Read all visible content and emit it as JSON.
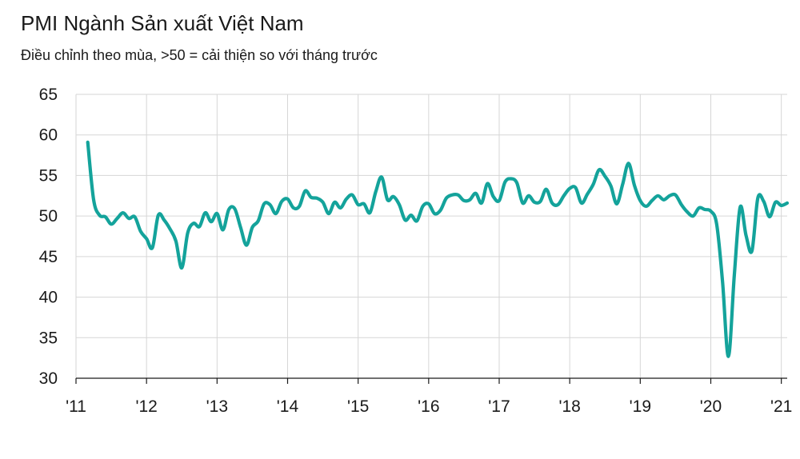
{
  "chart_data": {
    "type": "line",
    "title": "PMI Ngành Sản xuất Việt Nam",
    "subtitle": "Điều chỉnh theo mùa, >50 = cải thiện so với tháng trước",
    "xlabel": "",
    "ylabel": "",
    "ylim": [
      30,
      65
    ],
    "yticks": [
      "65",
      "60",
      "55",
      "50",
      "45",
      "40",
      "35",
      "30"
    ],
    "xlim": [
      "2011-01",
      "2021-02"
    ],
    "xticks": [
      {
        "label": "'11",
        "year": 2011
      },
      {
        "label": "'12",
        "year": 2012
      },
      {
        "label": "'13",
        "year": 2013
      },
      {
        "label": "'14",
        "year": 2014
      },
      {
        "label": "'15",
        "year": 2015
      },
      {
        "label": "'16",
        "year": 2016
      },
      {
        "label": "'17",
        "year": 2017
      },
      {
        "label": "'18",
        "year": 2018
      },
      {
        "label": "'19",
        "year": 2019
      },
      {
        "label": "'20",
        "year": 2020
      },
      {
        "label": "'21",
        "year": 2021
      }
    ],
    "grid": true,
    "line_color": "#14a39b",
    "series": [
      {
        "x": [
          "2011-03",
          "2011-04",
          "2011-05",
          "2011-06",
          "2011-07",
          "2011-08",
          "2011-09",
          "2011-10",
          "2011-11",
          "2011-12",
          "2012-01",
          "2012-02",
          "2012-03",
          "2012-04",
          "2012-05",
          "2012-06",
          "2012-07",
          "2012-08",
          "2012-09",
          "2012-10",
          "2012-11",
          "2012-12",
          "2013-01",
          "2013-02",
          "2013-03",
          "2013-04",
          "2013-05",
          "2013-06",
          "2013-07",
          "2013-08",
          "2013-09",
          "2013-10",
          "2013-11",
          "2013-12",
          "2014-01",
          "2014-02",
          "2014-03",
          "2014-04",
          "2014-05",
          "2014-06",
          "2014-07",
          "2014-08",
          "2014-09",
          "2014-10",
          "2014-11",
          "2014-12",
          "2015-01",
          "2015-02",
          "2015-03",
          "2015-04",
          "2015-05",
          "2015-06",
          "2015-07",
          "2015-08",
          "2015-09",
          "2015-10",
          "2015-11",
          "2015-12",
          "2016-01",
          "2016-02",
          "2016-03",
          "2016-04",
          "2016-05",
          "2016-06",
          "2016-07",
          "2016-08",
          "2016-09",
          "2016-10",
          "2016-11",
          "2016-12",
          "2017-01",
          "2017-02",
          "2017-03",
          "2017-04",
          "2017-05",
          "2017-06",
          "2017-07",
          "2017-08",
          "2017-09",
          "2017-10",
          "2017-11",
          "2017-12",
          "2018-01",
          "2018-02",
          "2018-03",
          "2018-04",
          "2018-05",
          "2018-06",
          "2018-07",
          "2018-08",
          "2018-09",
          "2018-10",
          "2018-11",
          "2018-12",
          "2019-01",
          "2019-02",
          "2019-03",
          "2019-04",
          "2019-05",
          "2019-06",
          "2019-07",
          "2019-08",
          "2019-09",
          "2019-10",
          "2019-11",
          "2019-12",
          "2020-01",
          "2020-02",
          "2020-03",
          "2020-04",
          "2020-05",
          "2020-06",
          "2020-07",
          "2020-08",
          "2020-09",
          "2020-10",
          "2020-11",
          "2020-12",
          "2021-01",
          "2021-02"
        ],
        "values": [
          59.1,
          52.0,
          50.1,
          49.9,
          49.0,
          49.7,
          50.4,
          49.7,
          49.9,
          48.1,
          47.2,
          46.1,
          50.1,
          49.5,
          48.4,
          46.9,
          43.6,
          47.9,
          49.1,
          48.7,
          50.4,
          49.3,
          50.3,
          48.3,
          50.8,
          50.9,
          48.6,
          46.4,
          48.6,
          49.4,
          51.5,
          51.4,
          50.3,
          51.8,
          52.1,
          51.0,
          51.2,
          53.1,
          52.3,
          52.2,
          51.7,
          50.3,
          51.7,
          51.0,
          52.1,
          52.6,
          51.4,
          51.5,
          50.4,
          53.0,
          54.8,
          52.0,
          52.4,
          51.4,
          49.5,
          50.1,
          49.4,
          51.2,
          51.5,
          50.3,
          50.7,
          52.2,
          52.6,
          52.6,
          51.9,
          52.0,
          52.8,
          51.6,
          54.0,
          52.4,
          51.9,
          54.2,
          54.6,
          54.1,
          51.6,
          52.5,
          51.7,
          51.8,
          53.3,
          51.6,
          51.4,
          52.5,
          53.4,
          53.5,
          51.6,
          52.7,
          53.9,
          55.7,
          54.9,
          53.7,
          51.5,
          53.9,
          56.5,
          53.8,
          51.9,
          51.2,
          51.9,
          52.5,
          52.0,
          52.5,
          52.6,
          51.4,
          50.5,
          50.0,
          51.0,
          50.8,
          50.6,
          49.0,
          41.9,
          32.7,
          42.7,
          51.1,
          47.6,
          45.7,
          52.2,
          51.8,
          49.9,
          51.7,
          51.3,
          51.6
        ]
      }
    ]
  }
}
